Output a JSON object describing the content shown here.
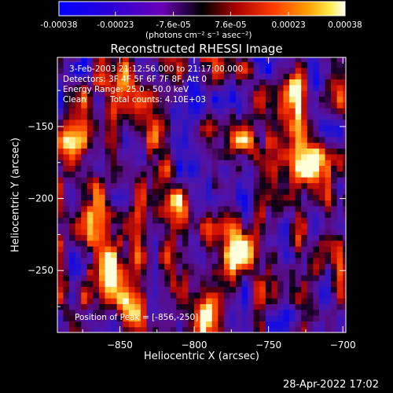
{
  "colorbar": {
    "tick_labels": [
      "-0.00038",
      "-0.00023",
      "-7.6e-05",
      "7.6e-05",
      "0.00023",
      "0.00038"
    ],
    "tick_values": [
      -0.00038,
      -0.00023,
      -7.6e-05,
      7.6e-05,
      0.00023,
      0.00038
    ],
    "unit_label": "(photons cm⁻² s⁻¹ asec⁻²)",
    "range": [
      -0.00038,
      0.00038
    ]
  },
  "chart_data": {
    "type": "heatmap",
    "title": "Reconstructed RHESSI Image",
    "xlabel": "Heliocentric X (arcsec)",
    "ylabel": "Heliocentric Y (arcsec)",
    "xlim": [
      -892,
      -698
    ],
    "ylim": [
      -293,
      -102
    ],
    "x_ticks": [
      -850,
      -800,
      -750,
      -700
    ],
    "x_tick_labels": [
      "−850",
      "−800",
      "−750",
      "−700"
    ],
    "y_ticks": [
      -150,
      -200,
      -250
    ],
    "y_tick_labels": [
      "−150",
      "−200",
      "−250"
    ],
    "colormap": "RHESSI hot/cold (blue-purple negative, red-orange-yellow-white positive)",
    "annotations": {
      "time_range": "3-Feb-2003 21:12:56.000 to 21:17:00.000",
      "detectors": "Detectors: 3F 4F 5F 6F 7F 8F, Att 0",
      "energy_range": "Energy Range: 25.0 - 50.0 keV",
      "method": "Clean",
      "total_counts": "Total counts: 4.10E+03",
      "peak": "Position of Peak = [-856,-250]"
    },
    "bright_sources": [
      {
        "x": -856,
        "y": -250,
        "relative_intensity": 1.0
      },
      {
        "x": -810,
        "y": -212,
        "relative_intensity": 0.85
      },
      {
        "x": -770,
        "y": -232,
        "relative_intensity": 0.9
      },
      {
        "x": -720,
        "y": -175,
        "relative_intensity": 0.85
      },
      {
        "x": -765,
        "y": -160,
        "relative_intensity": 0.7
      },
      {
        "x": -880,
        "y": -165,
        "relative_intensity": 0.75
      },
      {
        "x": -870,
        "y": -220,
        "relative_intensity": 0.7
      },
      {
        "x": -845,
        "y": -270,
        "relative_intensity": 0.8
      },
      {
        "x": -735,
        "y": -125,
        "relative_intensity": 0.75
      },
      {
        "x": -795,
        "y": -285,
        "relative_intensity": 0.6
      },
      {
        "x": -855,
        "y": -130,
        "relative_intensity": 0.55
      }
    ]
  },
  "footer": {
    "date": "28-Apr-2022 17:02"
  },
  "colors": {
    "background": "#000000",
    "foreground": "#ffffff"
  }
}
